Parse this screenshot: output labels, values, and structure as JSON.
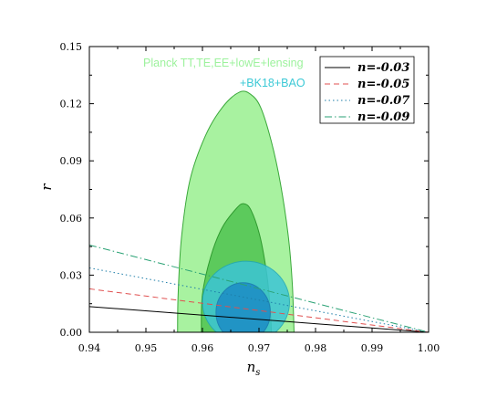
{
  "chart_data": {
    "type": "line",
    "xlabel": "n",
    "xlabel_sub": "s",
    "ylabel": "r",
    "xlim": [
      0.94,
      1.0
    ],
    "ylim": [
      0.0,
      0.15
    ],
    "x_ticks": [
      "0.94",
      "0.95",
      "0.96",
      "0.97",
      "0.98",
      "0.99",
      "1.00"
    ],
    "y_ticks": [
      "0.00",
      "0.03",
      "0.06",
      "0.09",
      "0.12",
      "0.15"
    ],
    "series": [
      {
        "name": "n=-0.03",
        "color": "#000000",
        "dash": "solid",
        "x": [
          0.94,
          1.0
        ],
        "y": [
          0.0135,
          0.0
        ]
      },
      {
        "name": "n=-0.05",
        "color": "#e05050",
        "dash": "dashed",
        "x": [
          0.94,
          1.0
        ],
        "y": [
          0.0228,
          0.0
        ]
      },
      {
        "name": "n=-0.07",
        "color": "#1e7ea8",
        "dash": "dotted",
        "x": [
          0.94,
          1.0
        ],
        "y": [
          0.0338,
          0.0
        ]
      },
      {
        "name": "n=-0.09",
        "color": "#2aa275",
        "dash": "dashdot",
        "x": [
          0.94,
          1.0
        ],
        "y": [
          0.0458,
          0.0
        ]
      }
    ],
    "contours": [
      {
        "label": "Planck TT,TE,EE+lowE+lensing 95%",
        "fill": "#a8f2a0",
        "stroke": "#3aa83a",
        "points": [
          [
            0.9556,
            0.0
          ],
          [
            0.9557,
            0.02
          ],
          [
            0.9563,
            0.05
          ],
          [
            0.9578,
            0.08
          ],
          [
            0.9605,
            0.103
          ],
          [
            0.9635,
            0.118
          ],
          [
            0.9665,
            0.126
          ],
          [
            0.9685,
            0.125
          ],
          [
            0.9703,
            0.118
          ],
          [
            0.9722,
            0.1
          ],
          [
            0.9738,
            0.078
          ],
          [
            0.9752,
            0.05
          ],
          [
            0.9759,
            0.025
          ],
          [
            0.9762,
            0.0
          ]
        ]
      },
      {
        "label": "Planck TT,TE,EE+lowE+lensing 68%",
        "fill": "#5cca5c",
        "stroke": "#2f9a2f",
        "points": [
          [
            0.9598,
            0.0
          ],
          [
            0.96,
            0.02
          ],
          [
            0.9615,
            0.04
          ],
          [
            0.9635,
            0.055
          ],
          [
            0.966,
            0.065
          ],
          [
            0.9673,
            0.0675
          ],
          [
            0.9686,
            0.064
          ],
          [
            0.9702,
            0.05
          ],
          [
            0.9714,
            0.03
          ],
          [
            0.972,
            0.012
          ],
          [
            0.9722,
            0.0
          ]
        ]
      },
      {
        "label": "+BK18+BAO 95%",
        "fill": "#3cc5d5",
        "stroke": "#1fa6b8",
        "opacity": 0.85,
        "ellipse": {
          "cx": 0.9677,
          "cy": 0.0158,
          "rx": 0.0077,
          "ry": 0.0215
        }
      },
      {
        "label": "+BK18+BAO 68%",
        "fill": "#1e8fc6",
        "stroke": "#1b7ab0",
        "opacity": 0.9,
        "ellipse": {
          "cx": 0.9672,
          "cy": 0.0105,
          "rx": 0.0048,
          "ry": 0.0155
        }
      }
    ],
    "annotations": [
      {
        "text": "Planck  TT,TE,EE+lowE+lensing",
        "color": "#9df29d"
      },
      {
        "text": "+BK18+BAO",
        "color": "#3cc9d6"
      }
    ],
    "legend": {
      "position": "top-right"
    },
    "grid": false
  }
}
